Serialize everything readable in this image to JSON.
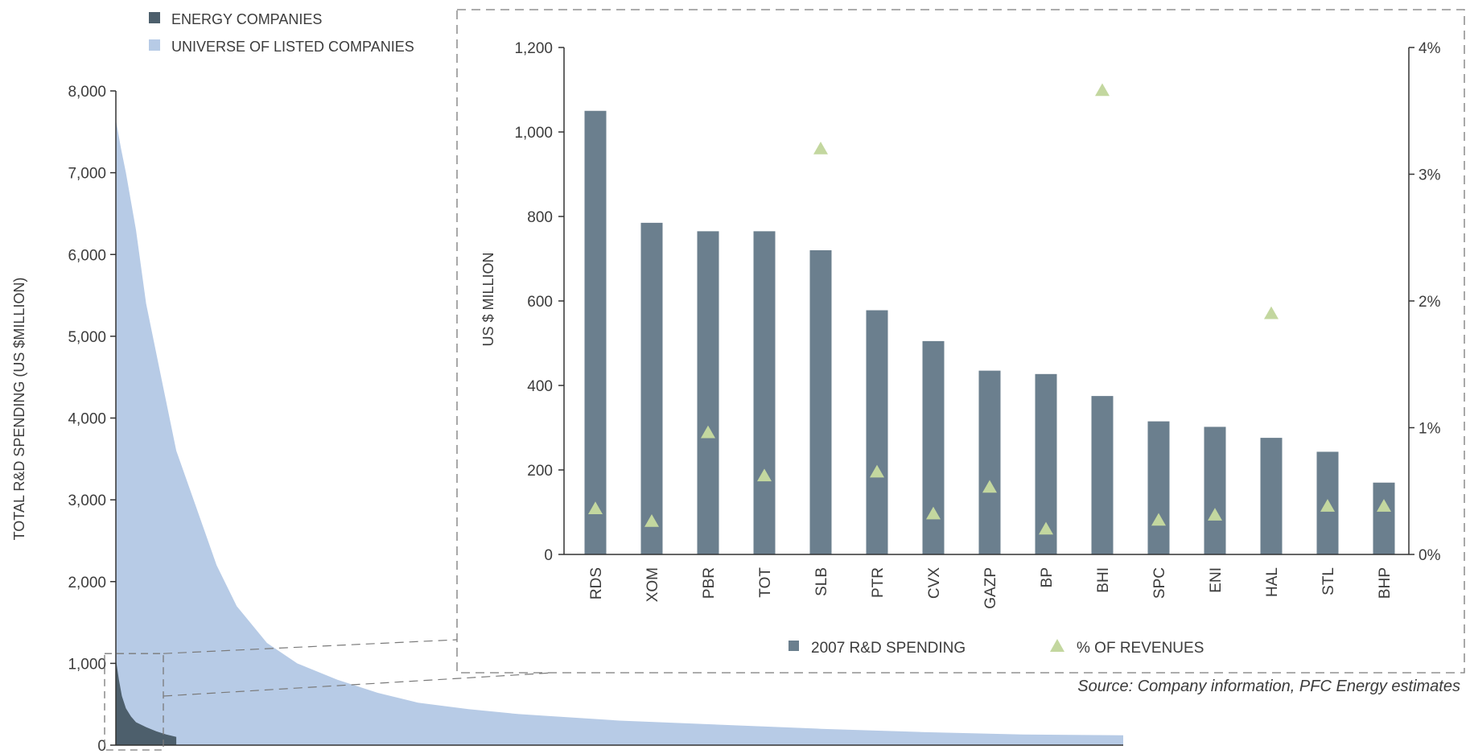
{
  "colors": {
    "energy": "#4d5f6c",
    "universe": "#b7cbe6",
    "bar": "#6b7f8e",
    "marker": "#c3d79f",
    "axis": "#333333",
    "dash": "#7a7a7a"
  },
  "source": "Source: Company information, PFC Energy estimates",
  "chart_data": [
    {
      "type": "area",
      "ylabel": "TOTAL R&D SPENDING (US $MILLION)",
      "xlabel": "",
      "ylim": [
        0,
        8000
      ],
      "yticks": [
        "0",
        "1,000",
        "2,000",
        "3,000",
        "4,000",
        "5,000",
        "6,000",
        "7,000",
        "8,000"
      ],
      "yticks_values": [
        0,
        1000,
        2000,
        3000,
        4000,
        5000,
        6000,
        7000,
        8000
      ],
      "legend": [
        {
          "label": "ENERGY COMPANIES",
          "color": "#4d5f6c"
        },
        {
          "label": "UNIVERSE OF LISTED COMPANIES",
          "color": "#b7cbe6"
        }
      ],
      "series": [
        {
          "name": "UNIVERSE OF LISTED COMPANIES",
          "x": [
            0,
            0.005,
            0.01,
            0.02,
            0.03,
            0.045,
            0.06,
            0.08,
            0.1,
            0.12,
            0.15,
            0.18,
            0.22,
            0.26,
            0.3,
            0.35,
            0.4,
            0.5,
            0.6,
            0.7,
            0.8,
            0.9,
            1.0
          ],
          "values": [
            7650,
            7300,
            7000,
            6300,
            5400,
            4500,
            3600,
            2900,
            2200,
            1700,
            1250,
            1000,
            800,
            640,
            520,
            440,
            380,
            300,
            250,
            200,
            160,
            130,
            120
          ]
        },
        {
          "name": "ENERGY COMPANIES",
          "x": [
            0,
            0.003,
            0.006,
            0.01,
            0.015,
            0.02,
            0.03,
            0.04,
            0.05,
            0.06
          ],
          "values": [
            1050,
            800,
            600,
            450,
            350,
            280,
            220,
            170,
            130,
            100
          ]
        }
      ]
    },
    {
      "type": "bar",
      "ylabel": "US $ MILLION",
      "xlabel": "",
      "ylim": [
        0,
        1200
      ],
      "yticks": [
        "0",
        "200",
        "400",
        "600",
        "800",
        "1,000",
        "1,200"
      ],
      "yticks_values": [
        0,
        200,
        400,
        600,
        800,
        1000,
        1200
      ],
      "y2lim": [
        0,
        4
      ],
      "y2ticks": [
        "0%",
        "1%",
        "2%",
        "3%",
        "4%"
      ],
      "categories": [
        "RDS",
        "XOM",
        "PBR",
        "TOT",
        "SLB",
        "PTR",
        "CVX",
        "GAZP",
        "BP",
        "BHI",
        "SPC",
        "ENI",
        "HAL",
        "STL",
        "BHP"
      ],
      "series": [
        {
          "name": "2007 R&D SPENDING",
          "axis": "left",
          "values": [
            1050,
            785,
            765,
            765,
            720,
            578,
            505,
            435,
            427,
            375,
            315,
            302,
            276,
            243,
            170
          ]
        },
        {
          "name": "% OF REVENUES",
          "axis": "right",
          "values": [
            0.36,
            0.26,
            0.96,
            0.62,
            3.2,
            0.65,
            0.32,
            0.53,
            0.2,
            3.66,
            0.27,
            0.31,
            1.9,
            0.38,
            0.38
          ]
        }
      ],
      "legend": [
        {
          "label": "2007 R&D SPENDING",
          "marker": "square"
        },
        {
          "label": "% OF REVENUES",
          "marker": "triangle"
        }
      ]
    }
  ]
}
